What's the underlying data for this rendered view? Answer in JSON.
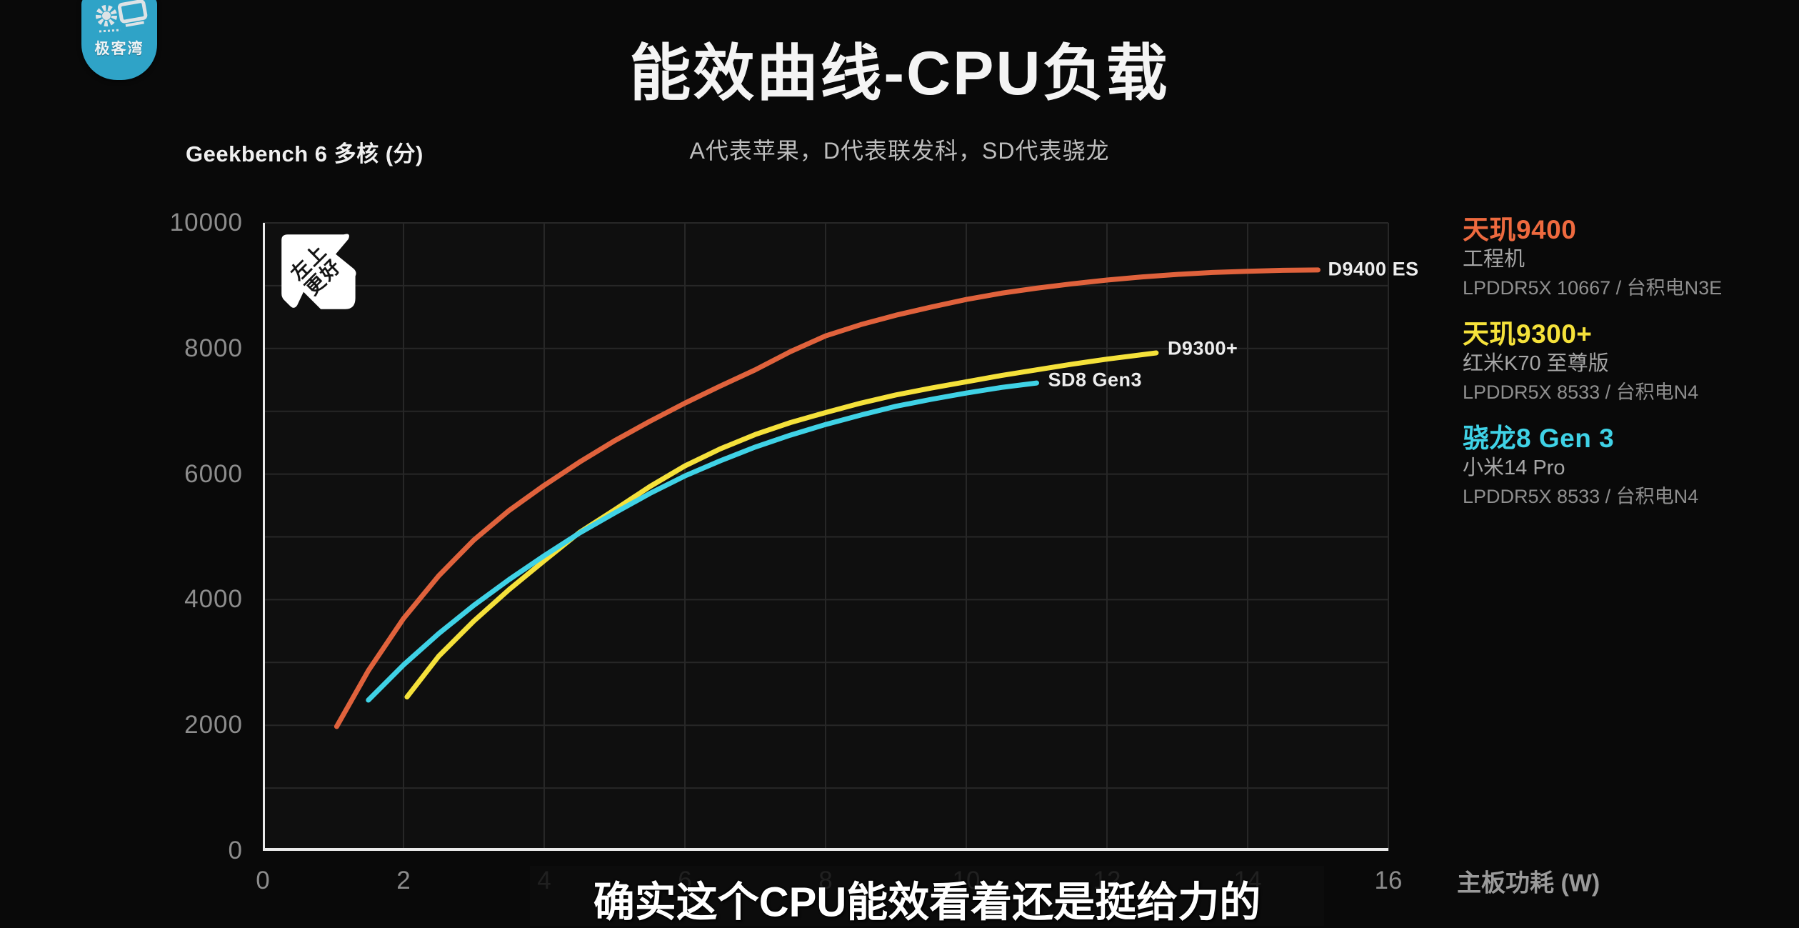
{
  "colors": {
    "logo_bg": "#2fa3c7",
    "logo_icon": "#dde3e6",
    "dianxin9400": "#e0623c",
    "dianxin9300": "#f5e13a",
    "snapdragon": "#3fd2e6",
    "grid": "#272727",
    "axis": "#eaeaea",
    "plot_bg": "#0f0f0f"
  },
  "logo": {
    "text": "极客湾"
  },
  "header": {
    "title": "能效曲线-CPU负载",
    "note": "A代表苹果，D代表联发科，SD代表骁龙"
  },
  "badge": {
    "line1": "左上",
    "line2": "更好"
  },
  "subtitle": {
    "text": "确实这个CPU能效看着还是挺给力的"
  },
  "chart_data": {
    "type": "line",
    "title": "能效曲线-CPU负载",
    "ylabel": "Geekbench 6 多核 (分)",
    "xlabel": "主板功耗 (W)",
    "xlim": [
      0,
      16
    ],
    "ylim": [
      0,
      10000
    ],
    "x_ticks": [
      0,
      2,
      4,
      6,
      8,
      10,
      12,
      14,
      16
    ],
    "y_ticks": [
      0,
      2000,
      4000,
      6000,
      8000,
      10000
    ],
    "x_grid_step": 2,
    "y_grid_step": 1000,
    "grid": true,
    "legend_position": "right",
    "series": [
      {
        "name": "天玑9400",
        "label": "D9400 ES",
        "color": "#e0623c",
        "label_offset": [
          14,
          -1
        ],
        "points": [
          [
            1.05,
            1980
          ],
          [
            1.5,
            2870
          ],
          [
            2,
            3700
          ],
          [
            2.5,
            4380
          ],
          [
            3,
            4950
          ],
          [
            3.5,
            5420
          ],
          [
            4,
            5820
          ],
          [
            4.5,
            6190
          ],
          [
            5,
            6530
          ],
          [
            5.5,
            6840
          ],
          [
            6,
            7130
          ],
          [
            6.5,
            7400
          ],
          [
            7,
            7660
          ],
          [
            7.5,
            7950
          ],
          [
            8,
            8200
          ],
          [
            8.5,
            8380
          ],
          [
            9,
            8530
          ],
          [
            9.5,
            8660
          ],
          [
            10,
            8780
          ],
          [
            10.5,
            8880
          ],
          [
            11,
            8960
          ],
          [
            11.5,
            9030
          ],
          [
            12,
            9090
          ],
          [
            12.5,
            9140
          ],
          [
            13,
            9180
          ],
          [
            13.5,
            9210
          ],
          [
            14,
            9230
          ],
          [
            14.5,
            9245
          ],
          [
            15,
            9250
          ]
        ]
      },
      {
        "name": "天玑9300+",
        "label": "D9300+",
        "color": "#f5e13a",
        "label_offset": [
          16,
          -6
        ],
        "points": [
          [
            2.05,
            2450
          ],
          [
            2.5,
            3100
          ],
          [
            3,
            3660
          ],
          [
            3.5,
            4160
          ],
          [
            4,
            4620
          ],
          [
            4.5,
            5070
          ],
          [
            5,
            5430
          ],
          [
            5.5,
            5800
          ],
          [
            6,
            6130
          ],
          [
            6.5,
            6400
          ],
          [
            7,
            6630
          ],
          [
            7.5,
            6820
          ],
          [
            8,
            6980
          ],
          [
            8.5,
            7130
          ],
          [
            9,
            7260
          ],
          [
            9.5,
            7370
          ],
          [
            10,
            7470
          ],
          [
            10.5,
            7570
          ],
          [
            11,
            7660
          ],
          [
            11.5,
            7750
          ],
          [
            12,
            7830
          ],
          [
            12.7,
            7930
          ]
        ]
      },
      {
        "name": "骁龙8 Gen 3",
        "label": "SD8 Gen3",
        "color": "#3fd2e6",
        "label_offset": [
          16,
          -4
        ],
        "points": [
          [
            1.5,
            2400
          ],
          [
            2,
            2960
          ],
          [
            2.5,
            3460
          ],
          [
            3,
            3910
          ],
          [
            3.5,
            4320
          ],
          [
            4,
            4700
          ],
          [
            4.5,
            5060
          ],
          [
            5,
            5380
          ],
          [
            5.5,
            5690
          ],
          [
            6,
            5970
          ],
          [
            6.5,
            6210
          ],
          [
            7,
            6430
          ],
          [
            7.5,
            6620
          ],
          [
            8,
            6790
          ],
          [
            8.5,
            6940
          ],
          [
            9,
            7080
          ],
          [
            9.5,
            7190
          ],
          [
            10,
            7290
          ],
          [
            10.5,
            7380
          ],
          [
            11,
            7450
          ]
        ]
      }
    ]
  },
  "legend": {
    "items": [
      {
        "title": "天玑9400",
        "color": "#ee6a3f",
        "device": "工程机",
        "spec": "LPDDR5X 10667 / 台积电N3E"
      },
      {
        "title": "天玑9300+",
        "color": "#f5e13a",
        "device": "红米K70 至尊版",
        "spec": "LPDDR5X 8533 / 台积电N4"
      },
      {
        "title": "骁龙8 Gen 3",
        "color": "#3fd2e6",
        "device": "小米14 Pro",
        "spec": "LPDDR5X 8533 / 台积电N4"
      }
    ]
  }
}
